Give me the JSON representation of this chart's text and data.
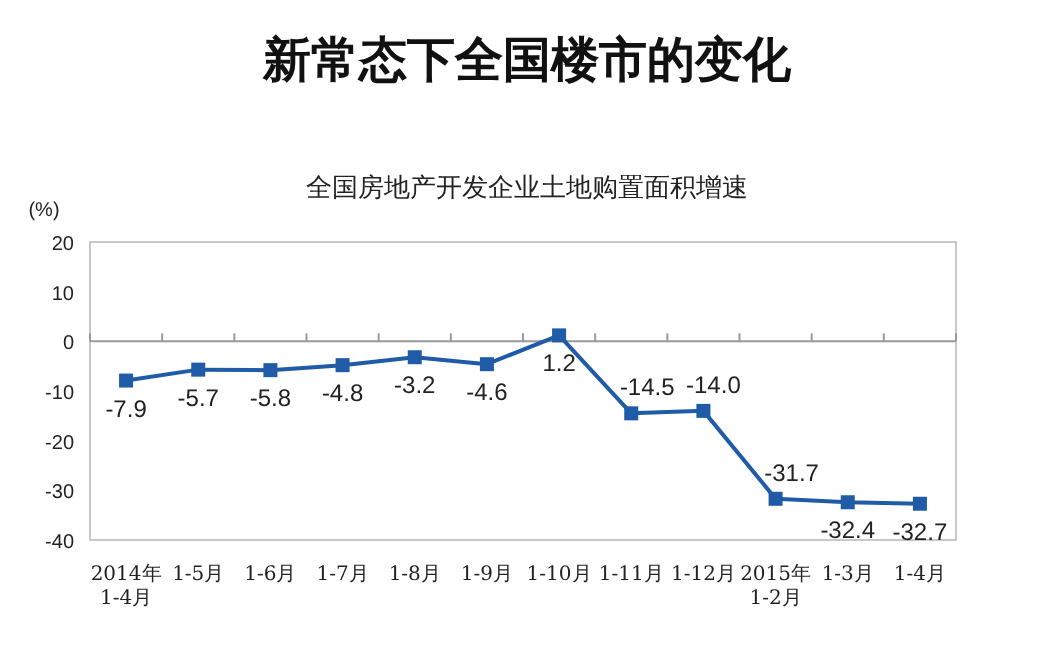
{
  "chart_data": {
    "type": "line",
    "title": "新常态下全国楼市的变化",
    "subtitle": "全国房地产开发企业土地购置面积增速",
    "ylabel": "(%)",
    "categories": [
      "2014年\n1-4月",
      "1-5月",
      "1-6月",
      "1-7月",
      "1-8月",
      "1-9月",
      "1-10月",
      "1-11月",
      "1-12月",
      "2015年\n1-2月",
      "1-3月",
      "1-4月"
    ],
    "series": [
      {
        "color": "#1f5ba6",
        "values": [
          -7.9,
          -5.7,
          -5.8,
          -4.8,
          -3.2,
          -4.6,
          1.2,
          -14.5,
          -14.0,
          -31.7,
          -32.4,
          -32.7
        ],
        "value_labels": [
          "-7.9",
          "-5.7",
          "-5.8",
          "-4.8",
          "-3.2",
          "-4.6",
          "1.2",
          "-14.5",
          "-14.0",
          "-31.7",
          "-32.4",
          "-32.7"
        ]
      }
    ],
    "ylim": [
      -40,
      20
    ],
    "yticks": [
      -40,
      -30,
      -20,
      -10,
      0,
      10,
      20
    ],
    "marker": "square"
  }
}
